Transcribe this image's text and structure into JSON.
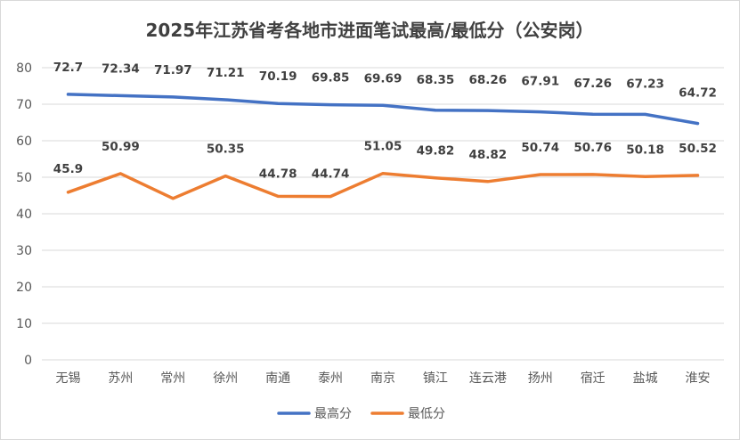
{
  "chart_data": {
    "type": "line",
    "title": "2025年江苏省考各地市进面笔试最高/最低分（公安岗）",
    "categories": [
      "无锡",
      "苏州",
      "常州",
      "徐州",
      "南通",
      "泰州",
      "南京",
      "镇江",
      "连云港",
      "扬州",
      "宿迁",
      "盐城",
      "淮安"
    ],
    "series": [
      {
        "name": "最高分",
        "color": "#4472c4",
        "values": [
          72.7,
          72.34,
          71.97,
          71.21,
          70.19,
          69.85,
          69.69,
          68.35,
          68.26,
          67.91,
          67.26,
          67.23,
          64.72
        ],
        "labels": [
          "72.7",
          "72.34",
          "71.97",
          "71.21",
          "70.19",
          "69.85",
          "69.69",
          "68.35",
          "68.26",
          "67.91",
          "67.26",
          "67.23",
          "64.72"
        ]
      },
      {
        "name": "最低分",
        "color": "#ed7d31",
        "values": [
          45.9,
          50.99,
          44.2,
          50.35,
          44.78,
          44.74,
          51.05,
          49.82,
          48.82,
          50.74,
          50.76,
          50.18,
          50.52
        ],
        "labels": [
          "45.9",
          "50.99",
          "",
          "50.35",
          "44.78",
          "44.74",
          "51.05",
          "49.82",
          "48.82",
          "50.74",
          "50.76",
          "50.18",
          "50.52"
        ]
      }
    ],
    "yticks": [
      "0",
      "10",
      "20",
      "30",
      "40",
      "50",
      "60",
      "70",
      "80"
    ],
    "ylim": [
      0,
      80
    ],
    "grid": true,
    "legend": "bottom"
  }
}
